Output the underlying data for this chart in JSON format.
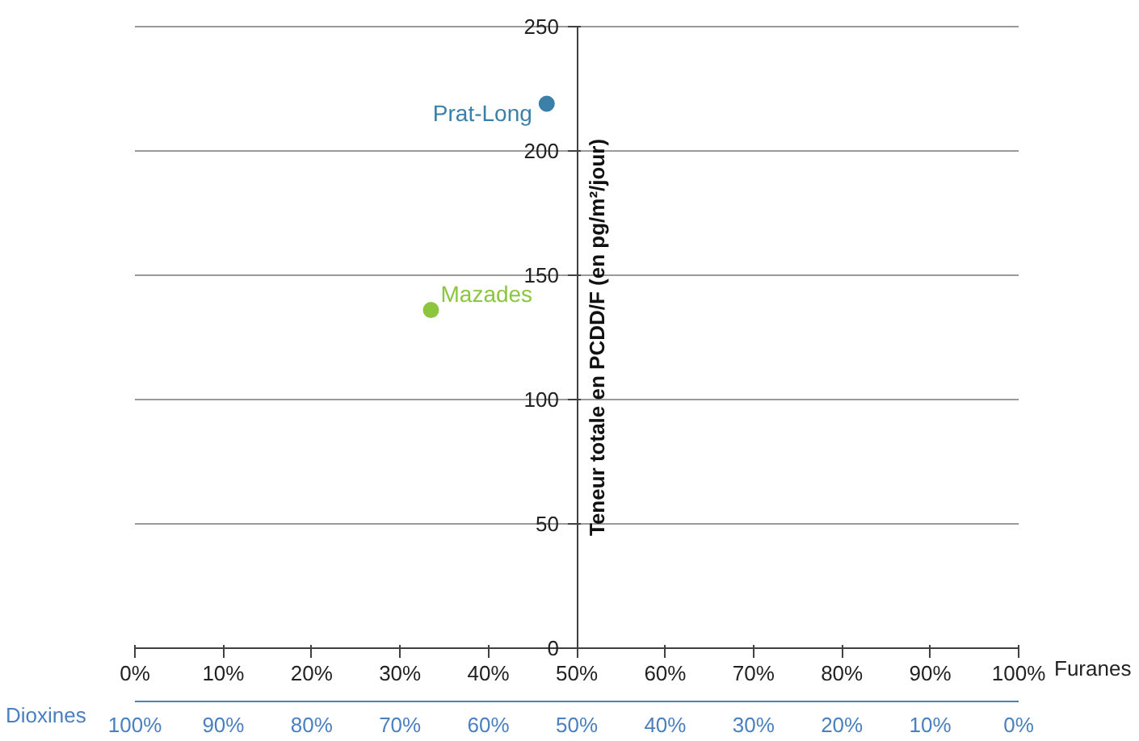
{
  "chart_data": {
    "type": "scatter",
    "ylabel": "Teneur totale en PCDD/F (en pg/m²/jour)",
    "xlabel": "Furanes",
    "x2label": "Dioxines",
    "series": [
      {
        "name": "Prat-Long",
        "color": "#3a80a8",
        "x": [
          46.6
        ],
        "values": [
          219
        ]
      },
      {
        "name": "Mazades",
        "color": "#8cc63f",
        "x": [
          33.5
        ],
        "values": [
          136
        ]
      }
    ],
    "xlim": [
      0,
      100
    ],
    "xticks": [
      {
        "value": 0,
        "label": "0%"
      },
      {
        "value": 10,
        "label": "10%"
      },
      {
        "value": 20,
        "label": "20%"
      },
      {
        "value": 30,
        "label": "30%"
      },
      {
        "value": 40,
        "label": "40%"
      },
      {
        "value": 50,
        "label": "50%"
      },
      {
        "value": 60,
        "label": "60%"
      },
      {
        "value": 70,
        "label": "70%"
      },
      {
        "value": 80,
        "label": "80%"
      },
      {
        "value": 90,
        "label": "90%"
      },
      {
        "value": 100,
        "label": "100%"
      }
    ],
    "x2lim": [
      100,
      0
    ],
    "x2ticks": [
      {
        "value": 100,
        "label": "100%"
      },
      {
        "value": 90,
        "label": "90%"
      },
      {
        "value": 80,
        "label": "80%"
      },
      {
        "value": 70,
        "label": "70%"
      },
      {
        "value": 60,
        "label": "60%"
      },
      {
        "value": 50,
        "label": "50%"
      },
      {
        "value": 40,
        "label": "40%"
      },
      {
        "value": 30,
        "label": "30%"
      },
      {
        "value": 20,
        "label": "20%"
      },
      {
        "value": 10,
        "label": "10%"
      },
      {
        "value": 0,
        "label": "0%"
      }
    ],
    "ylim": [
      0,
      250
    ],
    "yticks": [
      0,
      50,
      100,
      150,
      200,
      250
    ],
    "grid": "y",
    "marker": "circle"
  }
}
